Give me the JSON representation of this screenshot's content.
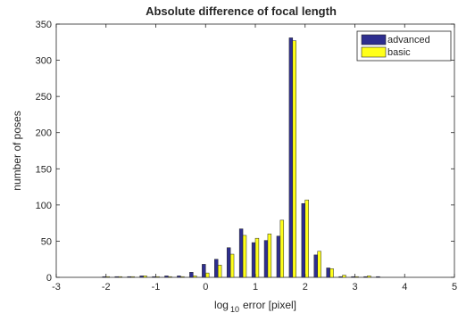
{
  "chart_data": {
    "type": "bar",
    "title": "Absolute difference of focal length",
    "xlabel": "log",
    "xlabel_sub": "10",
    "xlabel_suffix": "error [pixel]",
    "ylabel": "number of poses",
    "xlim": [
      -3,
      5
    ],
    "ylim": [
      0,
      350
    ],
    "xticks": [
      -3,
      -2,
      -1,
      0,
      1,
      2,
      3,
      4,
      5
    ],
    "yticks": [
      0,
      50,
      100,
      150,
      200,
      250,
      300,
      350
    ],
    "grid": false,
    "legend_position": "top-right",
    "x": [
      -2.25,
      -2.0,
      -1.75,
      -1.5,
      -1.25,
      -1.0,
      -0.75,
      -0.5,
      -0.25,
      0.0,
      0.25,
      0.5,
      0.75,
      1.0,
      1.25,
      1.5,
      1.75,
      2.0,
      2.25,
      2.5,
      2.75,
      3.0,
      3.25,
      3.5,
      3.75,
      4.0,
      4.25,
      4.5,
      4.75
    ],
    "series": [
      {
        "name": "advanced",
        "color": "#2e2e8f",
        "values": [
          0,
          1,
          1,
          1,
          2,
          1,
          2,
          2,
          7,
          18,
          25,
          41,
          67,
          48,
          51,
          57,
          331,
          102,
          31,
          13,
          1,
          1,
          1,
          1,
          0,
          0,
          0,
          0,
          0
        ]
      },
      {
        "name": "basic",
        "color": "#ffff1a",
        "values": [
          0,
          1,
          1,
          1,
          2,
          1,
          1,
          1,
          2,
          6,
          17,
          32,
          58,
          54,
          60,
          79,
          327,
          107,
          36,
          12,
          3,
          1,
          2,
          0,
          0,
          0,
          0,
          0,
          0
        ]
      }
    ]
  }
}
